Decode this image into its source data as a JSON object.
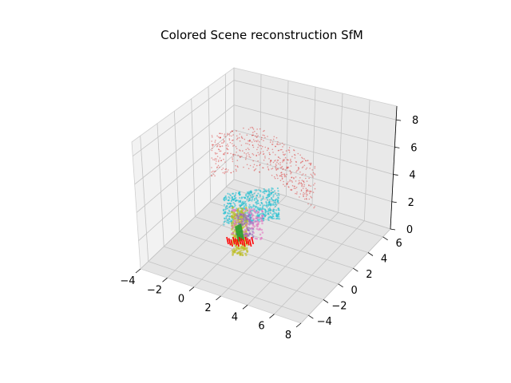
{
  "chart_data": {
    "type": "scatter",
    "projection": "3d",
    "title": "Colored Scene reconstruction SfM",
    "grid": true,
    "axes": {
      "x": {
        "ticks": [
          "−4",
          "−2",
          "0",
          "2",
          "4",
          "6",
          "8"
        ],
        "lim": [
          -4,
          8
        ]
      },
      "y": {
        "ticks": [
          "−4",
          "−2",
          "0",
          "2",
          "4",
          "6"
        ],
        "lim": [
          -5,
          7
        ]
      },
      "z": {
        "ticks": [
          "0",
          "2",
          "4",
          "6",
          "8"
        ],
        "lim": [
          0,
          9
        ]
      }
    },
    "series": [
      {
        "color": "#d62728",
        "marker": "point cloud (sparse, upper)",
        "approx_points": 600
      },
      {
        "color": "#17becf",
        "marker": "point cloud (dense, lower)"
      },
      {
        "color": "#bcbd22",
        "marker": "point cloud (dense, lower)"
      },
      {
        "color": "#e377c2",
        "marker": "point cloud (dense, lower)"
      },
      {
        "color": "#9467bd",
        "marker": "point cloud (dense, lower)"
      },
      {
        "color": "#2ca02c",
        "marker": "camera frustum"
      },
      {
        "color": "#ff0000",
        "marker": "camera poses"
      }
    ]
  }
}
